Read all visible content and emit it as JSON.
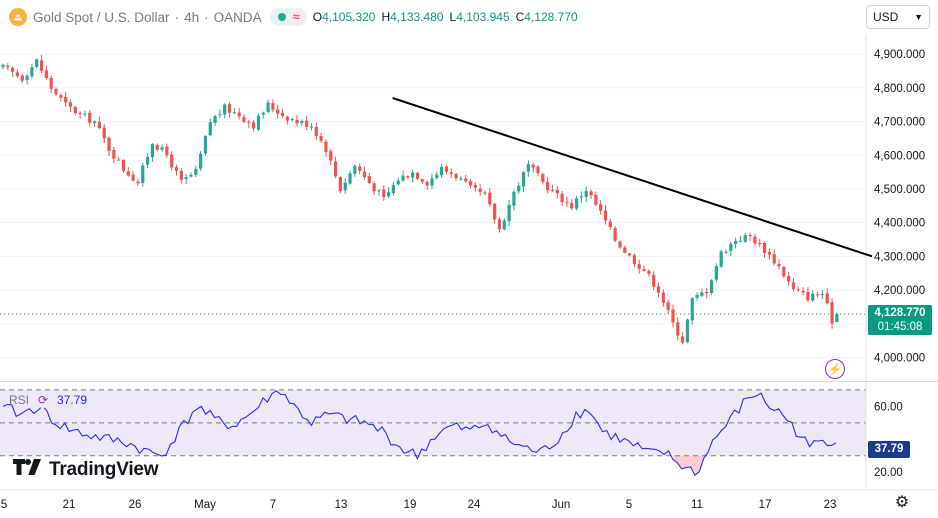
{
  "header": {
    "symbol": "Gold Spot / U.S. Dollar",
    "separator": "·",
    "interval": "4h",
    "broker": "OANDA",
    "ohlc": {
      "o_label": "O",
      "o_value": "4,105.320",
      "h_label": "H",
      "h_value": "4,133.480",
      "l_label": "L",
      "l_value": "4,103.945",
      "c_label": "C",
      "c_value": "4,128.770"
    }
  },
  "currency_button": {
    "label": "USD"
  },
  "price_tag": {
    "value": "4,128.770",
    "countdown": "01:45:08"
  },
  "rsi": {
    "label": "RSI",
    "value": "37.79",
    "tag": "37.79"
  },
  "branding": {
    "logo_text": "TradingView"
  },
  "colors": {
    "up": "#26a69a",
    "down": "#ef5350",
    "trendline": "#000000",
    "rsi_line": "#2a2ee8",
    "rsi_band": "#ede7f6",
    "price_tag": "#089981",
    "rsi_tag": "#1e3a8a"
  },
  "chart_data": [
    {
      "type": "candlestick",
      "title": "Gold Spot / U.S. Dollar · 4h · OANDA",
      "ylim": [
        3930,
        4960
      ],
      "y_ticks": [
        4000,
        4100,
        4200,
        4300,
        4400,
        4500,
        4600,
        4700,
        4800,
        4900
      ],
      "y_tick_labels": [
        "4,000.000",
        "4,100.000",
        "4,200.000",
        "4,300.000",
        "4,400.000",
        "4,500.000",
        "4,600.000",
        "4,700.000",
        "4,800.000",
        "4,900.000"
      ],
      "x_labels": [
        "5",
        "21",
        "26",
        "May",
        "7",
        "13",
        "19",
        "24",
        "Jun",
        "5",
        "11",
        "17",
        "23"
      ],
      "last_close": 4128.77,
      "anchors": [
        [
          0,
          4860
        ],
        [
          4,
          4830
        ],
        [
          7,
          4880
        ],
        [
          10,
          4800
        ],
        [
          13,
          4750
        ],
        [
          16,
          4720
        ],
        [
          19,
          4700
        ],
        [
          22,
          4620
        ],
        [
          25,
          4560
        ],
        [
          28,
          4520
        ],
        [
          31,
          4640
        ],
        [
          34,
          4600
        ],
        [
          37,
          4520
        ],
        [
          40,
          4550
        ],
        [
          43,
          4700
        ],
        [
          46,
          4740
        ],
        [
          49,
          4720
        ],
        [
          52,
          4690
        ],
        [
          55,
          4750
        ],
        [
          58,
          4720
        ],
        [
          61,
          4700
        ],
        [
          64,
          4690
        ],
        [
          67,
          4620
        ],
        [
          70,
          4500
        ],
        [
          73,
          4570
        ],
        [
          76,
          4520
        ],
        [
          79,
          4470
        ],
        [
          82,
          4530
        ],
        [
          85,
          4550
        ],
        [
          88,
          4520
        ],
        [
          91,
          4560
        ],
        [
          94,
          4540
        ],
        [
          97,
          4500
        ],
        [
          100,
          4480
        ],
        [
          103,
          4380
        ],
        [
          106,
          4490
        ],
        [
          109,
          4570
        ],
        [
          112,
          4520
        ],
        [
          115,
          4480
        ],
        [
          118,
          4450
        ],
        [
          121,
          4500
        ],
        [
          124,
          4430
        ],
        [
          127,
          4350
        ],
        [
          130,
          4300
        ],
        [
          133,
          4260
        ],
        [
          136,
          4200
        ],
        [
          139,
          4100
        ],
        [
          141,
          4050
        ],
        [
          143,
          4170
        ],
        [
          146,
          4200
        ],
        [
          149,
          4310
        ],
        [
          152,
          4350
        ],
        [
          155,
          4360
        ],
        [
          158,
          4320
        ],
        [
          161,
          4270
        ],
        [
          164,
          4200
        ],
        [
          167,
          4180
        ],
        [
          170,
          4190
        ],
        [
          172,
          4110
        ],
        [
          173,
          4128.77
        ]
      ],
      "trendline": {
        "from": [
          80,
          4770
        ],
        "to": [
          173,
          4300
        ]
      }
    },
    {
      "type": "line",
      "title": "RSI",
      "ylim": [
        14,
        73
      ],
      "y_ticks": [
        20,
        60
      ],
      "y_tick_labels": [
        "20.00",
        "60.00"
      ],
      "bands": [
        30,
        50,
        70
      ],
      "last_value": 37.79,
      "anchors": [
        [
          0,
          60
        ],
        [
          4,
          55
        ],
        [
          8,
          60
        ],
        [
          12,
          50
        ],
        [
          16,
          45
        ],
        [
          20,
          42
        ],
        [
          24,
          40
        ],
        [
          28,
          38
        ],
        [
          32,
          33
        ],
        [
          36,
          30
        ],
        [
          40,
          45
        ],
        [
          44,
          60
        ],
        [
          48,
          52
        ],
        [
          52,
          48
        ],
        [
          56,
          55
        ],
        [
          60,
          65
        ],
        [
          63,
          70
        ],
        [
          66,
          60
        ],
        [
          70,
          50
        ],
        [
          74,
          55
        ],
        [
          78,
          52
        ],
        [
          82,
          50
        ],
        [
          86,
          45
        ],
        [
          90,
          35
        ],
        [
          94,
          30
        ],
        [
          98,
          42
        ],
        [
          102,
          48
        ],
        [
          106,
          45
        ],
        [
          110,
          50
        ],
        [
          114,
          40
        ],
        [
          118,
          35
        ],
        [
          122,
          32
        ],
        [
          126,
          40
        ],
        [
          130,
          55
        ],
        [
          133,
          58
        ],
        [
          136,
          45
        ],
        [
          140,
          40
        ],
        [
          144,
          35
        ],
        [
          147,
          31
        ],
        [
          150,
          32
        ],
        [
          152,
          28
        ],
        [
          155,
          22
        ],
        [
          158,
          20
        ],
        [
          160,
          35
        ],
        [
          163,
          45
        ],
        [
          166,
          55
        ],
        [
          169,
          65
        ],
        [
          171,
          68
        ],
        [
          174,
          60
        ],
        [
          177,
          55
        ],
        [
          180,
          45
        ],
        [
          183,
          35
        ],
        [
          186,
          40
        ],
        [
          189,
          37.79
        ]
      ]
    }
  ]
}
